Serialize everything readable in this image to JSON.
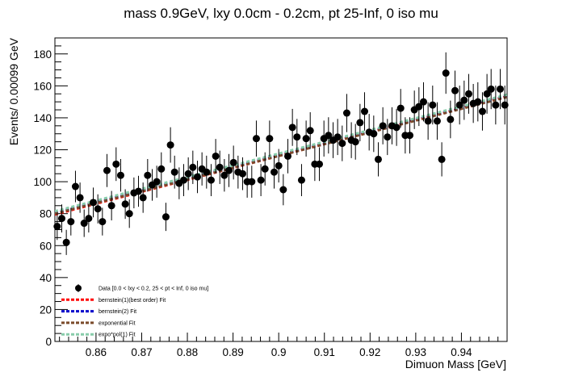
{
  "chart_data": {
    "type": "scatter",
    "title": "mass 0.9GeV, lxy 0.0cm - 0.2cm, pt 25-Inf, 0 iso mu",
    "xlabel": "Dimuon Mass [GeV]",
    "ylabel": "Events/ 0.00099 GeV",
    "xlim": [
      0.851,
      0.95
    ],
    "ylim": [
      0,
      190
    ],
    "x_ticks": [
      0.86,
      0.87,
      0.88,
      0.89,
      0.9,
      0.91,
      0.92,
      0.93,
      0.94
    ],
    "x_tick_labels": [
      "0.86",
      "0.87",
      "0.88",
      "0.89",
      "0.9",
      "0.91",
      "0.92",
      "0.93",
      "0.94"
    ],
    "y_ticks": [
      0,
      20,
      40,
      60,
      80,
      100,
      120,
      140,
      160,
      180
    ],
    "y_tick_labels": [
      "0",
      "20",
      "40",
      "60",
      "80",
      "100",
      "120",
      "140",
      "160",
      "180"
    ],
    "grid": false,
    "legend_position": "bottom-left",
    "legend": [
      {
        "label": "Data [0.0 < lxy < 0.2, 25 < pt < Inf, 0 iso mu]",
        "color": "#000000",
        "style": "marker"
      },
      {
        "label": "bernstein(1)(best order) Fit",
        "color": "#ff0000",
        "style": "dashed"
      },
      {
        "label": "bernstein(2) Fit",
        "color": "#0000cc",
        "style": "dashed"
      },
      {
        "label": "exponential Fit",
        "color": "#7a4a2a",
        "style": "dashed"
      },
      {
        "label": "expo*pol(1) Fit",
        "color": "#88ccaa",
        "style": "dashed"
      }
    ],
    "series": [
      {
        "name": "Data [0.0 < lxy < 0.2, 25 < pt < Inf, 0 iso mu]",
        "x": [
          0.8515,
          0.8525,
          0.8535,
          0.8545,
          0.8555,
          0.8565,
          0.8574,
          0.8584,
          0.8594,
          0.8604,
          0.8614,
          0.8624,
          0.8634,
          0.8644,
          0.8654,
          0.8664,
          0.8673,
          0.8683,
          0.8693,
          0.8703,
          0.8713,
          0.8723,
          0.8733,
          0.8743,
          0.8753,
          0.8763,
          0.8772,
          0.8782,
          0.8792,
          0.8802,
          0.8812,
          0.8822,
          0.8832,
          0.8842,
          0.8852,
          0.8862,
          0.8871,
          0.8881,
          0.8891,
          0.8901,
          0.8911,
          0.8921,
          0.8931,
          0.8941,
          0.8951,
          0.8961,
          0.897,
          0.898,
          0.899,
          0.9,
          0.901,
          0.902,
          0.903,
          0.904,
          0.905,
          0.906,
          0.9069,
          0.9079,
          0.9089,
          0.9099,
          0.9109,
          0.9119,
          0.9129,
          0.9139,
          0.9149,
          0.9159,
          0.9168,
          0.9178,
          0.9188,
          0.9198,
          0.9208,
          0.9218,
          0.9228,
          0.9238,
          0.9248,
          0.9258,
          0.9267,
          0.9277,
          0.9287,
          0.9297,
          0.9307,
          0.9317,
          0.9327,
          0.9337,
          0.9347,
          0.9357,
          0.9366,
          0.9376,
          0.9386,
          0.9396,
          0.9406,
          0.9416,
          0.9426,
          0.9436,
          0.9446,
          0.9456,
          0.9465,
          0.9475,
          0.9485,
          0.9495
        ],
        "y": [
          72,
          77,
          62,
          75,
          97,
          90,
          74,
          77,
          87,
          83,
          75,
          107,
          85,
          111,
          104,
          86,
          80,
          93,
          94,
          90,
          104,
          98,
          100,
          108,
          78,
          123,
          106,
          99,
          101,
          105,
          109,
          103,
          108,
          106,
          101,
          116,
          109,
          104,
          107,
          112,
          106,
          105,
          100,
          100,
          127,
          101,
          108,
          127,
          106,
          110,
          95,
          116,
          134,
          128,
          101,
          127,
          132,
          111,
          111,
          127,
          129,
          126,
          128,
          124,
          143,
          126,
          125,
          137,
          144,
          131,
          130,
          114,
          135,
          128,
          135,
          134,
          146,
          129,
          129,
          145,
          147,
          150,
          138,
          148,
          138,
          114,
          168,
          139,
          157,
          148,
          151,
          155,
          149,
          150,
          144,
          155,
          158,
          148,
          158,
          148
        ]
      }
    ],
    "fits": [
      {
        "name": "bernstein(1)(best order) Fit",
        "x": [
          0.851,
          0.95
        ],
        "y": [
          79.5,
          153.5
        ]
      },
      {
        "name": "bernstein(2) Fit",
        "x": [
          0.851,
          0.95
        ],
        "y": [
          80.5,
          153.5
        ]
      },
      {
        "name": "exponential Fit",
        "x": [
          0.851,
          0.95
        ],
        "y": [
          80.0,
          153.0
        ]
      },
      {
        "name": "expo*pol(1) Fit",
        "x": [
          0.851,
          0.95
        ],
        "y": [
          81.5,
          154.5
        ]
      }
    ]
  }
}
